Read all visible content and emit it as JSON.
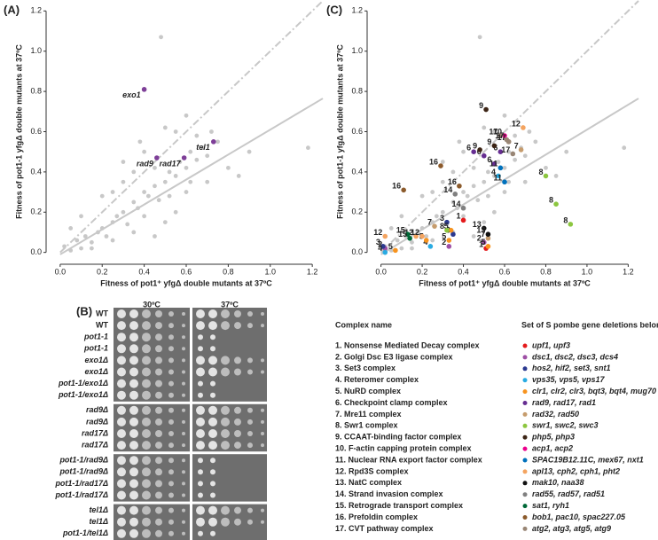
{
  "panels": {
    "a": "(A)",
    "b": "(B)",
    "c": "(C)"
  },
  "chart_data": [
    {
      "type": "scatter",
      "xlabel": "Fitness of pot1⁺ yfgΔ double mutants at 37ºC",
      "ylabel": "Fitness of pot1-1 yfgΔ double mutants at 37ºC",
      "xlim": [
        -0.05,
        1.25
      ],
      "ylim": [
        -0.05,
        1.25
      ],
      "xticks": [
        {
          "value": 0,
          "label": "0.0"
        },
        0.2,
        0.4,
        0.6,
        0.8,
        {
          "value": 1,
          "label": "1.0"
        },
        1.2
      ],
      "yticks": [
        {
          "value": 0,
          "label": "0.0"
        },
        0.2,
        0.4,
        0.6,
        0.8,
        {
          "value": 1,
          "label": "1.0"
        },
        1.2
      ],
      "reference_lines": [
        {
          "style": "dashed",
          "slope": 1,
          "intercept": 0
        },
        {
          "style": "solid",
          "slope": 0.62,
          "intercept": -0.01
        }
      ],
      "series": [
        {
          "color": "#c8c8c8",
          "x": [
            0.02,
            0.05,
            0.08,
            0.1,
            0.12,
            0.15,
            0.18,
            0.2,
            0.22,
            0.25,
            0.27,
            0.3,
            0.32,
            0.35,
            0.37,
            0.4,
            0.42,
            0.45,
            0.47,
            0.5,
            0.52,
            0.55,
            0.57,
            0.6,
            0.62,
            0.65,
            0.68,
            0.7,
            0.75,
            0.8,
            0.85,
            0.9,
            1.18,
            0.05,
            0.1,
            0.15,
            0.2,
            0.25,
            0.3,
            0.35,
            0.4,
            0.45,
            0.5,
            0.55,
            0.6,
            0.65,
            0.7,
            0.3,
            0.4,
            0.5,
            0.45,
            0.6,
            0.52,
            0.35,
            0.25,
            0.55,
            0.62,
            0.72,
            0.48,
            0.38
          ],
          "y": [
            0.03,
            0.01,
            0.06,
            0.02,
            0.08,
            0.05,
            0.1,
            0.12,
            0.08,
            0.15,
            0.18,
            0.2,
            0.14,
            0.25,
            0.22,
            0.3,
            0.28,
            0.33,
            0.26,
            0.35,
            0.4,
            0.38,
            0.45,
            0.42,
            0.5,
            0.46,
            0.52,
            0.48,
            0.55,
            0.42,
            0.38,
            0.5,
            0.52,
            0.12,
            0.18,
            0.02,
            0.28,
            0.06,
            0.35,
            0.1,
            0.18,
            0.42,
            0.15,
            0.6,
            0.3,
            0.58,
            0.35,
            0.45,
            0.5,
            0.62,
            0.08,
            0.68,
            0.28,
            0.4,
            0.3,
            0.2,
            0.35,
            0.6,
            1.07,
            0.55
          ]
        },
        {
          "color": "#7e3f98",
          "x": [
            0.4,
            0.46,
            0.59,
            0.73
          ],
          "y": [
            0.81,
            0.47,
            0.47,
            0.55
          ],
          "point_labels": [
            "exo1",
            "rad9",
            "rad17",
            "tel1"
          ]
        }
      ]
    },
    {
      "type": "scatter",
      "xlabel": "Fitness of pot1⁺ yfgΔ double mutants at 37ºC",
      "ylabel": "Fitness of pot1-1 yfgΔ double mutants at 37ºC",
      "xlim": [
        -0.05,
        1.25
      ],
      "ylim": [
        -0.05,
        1.25
      ],
      "xticks": [
        {
          "value": 0,
          "label": "0.0"
        },
        0.2,
        0.4,
        0.6,
        0.8,
        {
          "value": 1,
          "label": "1.0"
        },
        1.2
      ],
      "yticks": [
        {
          "value": 0,
          "label": "0.0"
        },
        0.2,
        0.4,
        0.6,
        0.8,
        {
          "value": 1,
          "label": "1.0"
        },
        1.2
      ],
      "reference_lines": [
        {
          "style": "dashed",
          "slope": 1,
          "intercept": 0
        },
        {
          "style": "solid",
          "slope": 0.62,
          "intercept": -0.01
        }
      ],
      "series": [
        {
          "name": "1",
          "color": "#e41a1c",
          "x": [
            0.4,
            0.51
          ],
          "y": [
            0.16,
            0.02
          ]
        },
        {
          "name": "2",
          "color": "#9e4fa5",
          "x": [
            0.02,
            0.33,
            0.5
          ],
          "y": [
            0.02,
            0.03,
            0.05
          ]
        },
        {
          "name": "3",
          "color": "#2b3990",
          "x": [
            0.01,
            0.32,
            0.35
          ],
          "y": [
            0.03,
            0.15,
            0.09
          ]
        },
        {
          "name": "4",
          "color": "#29abe2",
          "x": [
            0.02,
            0.24,
            0.57
          ],
          "y": [
            0.0,
            0.03,
            0.38
          ]
        },
        {
          "name": "5",
          "color": "#f7931e",
          "x": [
            0.07,
            0.22,
            0.33,
            0.34,
            0.52
          ],
          "y": [
            0.01,
            0.06,
            0.06,
            0.11,
            0.03
          ]
        },
        {
          "name": "6",
          "color": "#662d91",
          "x": [
            0.45,
            0.5,
            0.55,
            0.58
          ],
          "y": [
            0.5,
            0.48,
            0.44,
            0.5
          ]
        },
        {
          "name": "7",
          "color": "#c69c6d",
          "x": [
            0.26,
            0.52,
            0.62,
            0.68
          ],
          "y": [
            0.13,
            0.07,
            0.55,
            0.51
          ]
        },
        {
          "name": "8",
          "color": "#8cc63f",
          "x": [
            0.32,
            0.8,
            0.85,
            0.92
          ],
          "y": [
            0.11,
            0.38,
            0.24,
            0.14
          ]
        },
        {
          "name": "9",
          "color": "#3c2415",
          "x": [
            0.51,
            0.55,
            0.48
          ],
          "y": [
            0.71,
            0.53,
            0.51
          ]
        },
        {
          "name": "10",
          "color": "#ec008c",
          "x": [
            0.6
          ],
          "y": [
            0.58
          ]
        },
        {
          "name": "11",
          "color": "#0071bc",
          "x": [
            0.58,
            0.6
          ],
          "y": [
            0.42,
            0.35
          ]
        },
        {
          "name": "12",
          "color": "#f4a460",
          "x": [
            0.02,
            0.17,
            0.2,
            0.69
          ],
          "y": [
            0.08,
            0.08,
            0.08,
            0.62
          ]
        },
        {
          "name": "13",
          "color": "#111111",
          "x": [
            0.5,
            0.52
          ],
          "y": [
            0.12,
            0.09
          ]
        },
        {
          "name": "14",
          "color": "#808080",
          "x": [
            0.36,
            0.4
          ],
          "y": [
            0.29,
            0.22
          ]
        },
        {
          "name": "15",
          "color": "#006837",
          "x": [
            0.13,
            0.14
          ],
          "y": [
            0.09,
            0.07
          ]
        },
        {
          "name": "16",
          "color": "#8b5a2b",
          "x": [
            0.11,
            0.29,
            0.38
          ],
          "y": [
            0.31,
            0.43,
            0.33
          ]
        },
        {
          "name": "17",
          "color": "#998675",
          "x": [
            0.58,
            0.61,
            0.62,
            0.64
          ],
          "y": [
            0.58,
            0.56,
            0.55,
            0.49
          ]
        }
      ]
    }
  ],
  "spot_assay": {
    "temperatures": [
      "30ºC",
      "37ºC"
    ],
    "strains": [
      "WT",
      "WT",
      "pot1-1",
      "pot1-1",
      "exo1Δ",
      "exo1Δ",
      "pot1-1/exo1Δ",
      "pot1-1/exo1Δ",
      "rad9Δ",
      "rad9Δ",
      "rad17Δ",
      "rad17Δ",
      "pot1-1/rad9Δ",
      "pot1-1/rad9Δ",
      "pot1-1/rad17Δ",
      "pot1-1/rad17Δ",
      "tel1Δ",
      "tel1Δ",
      "pot1-1/tel1Δ",
      "pot1-1/tel1Δ"
    ]
  },
  "complex_table": {
    "header": [
      "Complex name",
      "Set of S pombe gene deletions belonging to the complex"
    ],
    "rows": [
      {
        "name": "1. Nonsense Mediated Decay complex",
        "genes": "upf1, upf3"
      },
      {
        "name": "2. Golgi Dsc E3 ligase complex",
        "genes": "dsc1, dsc2, dsc3, dcs4"
      },
      {
        "name": "3. Set3 complex",
        "genes": "hos2, hif2, set3, snt1"
      },
      {
        "name": "4. Reteromer complex",
        "genes": "vps35, vps5, vps17"
      },
      {
        "name": "5. NuRD complex",
        "genes": "clr1, clr2, clr3, bqt3, bqt4, mug70"
      },
      {
        "name": "6. Checkpoint clamp complex",
        "genes": "rad9, rad17, rad1"
      },
      {
        "name": "7. Mre11 complex",
        "genes": "rad32, rad50"
      },
      {
        "name": "8. Swr1 complex",
        "genes": "swr1, swc2, swc3"
      },
      {
        "name": "9. CCAAT-binding factor complex",
        "genes": "php5, php3"
      },
      {
        "name": "10. F-actin capping protein complex",
        "genes": "acp1, acp2"
      },
      {
        "name": "11. Nuclear RNA export factor complex",
        "genes": "SPAC19B12.11C, mex67, nxt1"
      },
      {
        "name": "12. Rpd3S complex",
        "genes": "apl13, cph2, cph1, pht2"
      },
      {
        "name": "13. NatC complex",
        "genes": "mak10, naa38"
      },
      {
        "name": "14. Strand invasion complex",
        "genes": "rad55, rad57, rad51"
      },
      {
        "name": "15. Retrograde transport complex",
        "genes": "sat1, ryh1"
      },
      {
        "name": "16. Prefoldin complex",
        "genes": "bob1, pac10, spac227.05"
      },
      {
        "name": "17. CVT pathway complex",
        "genes": "atg2, atg3, atg5, atg9"
      }
    ]
  }
}
